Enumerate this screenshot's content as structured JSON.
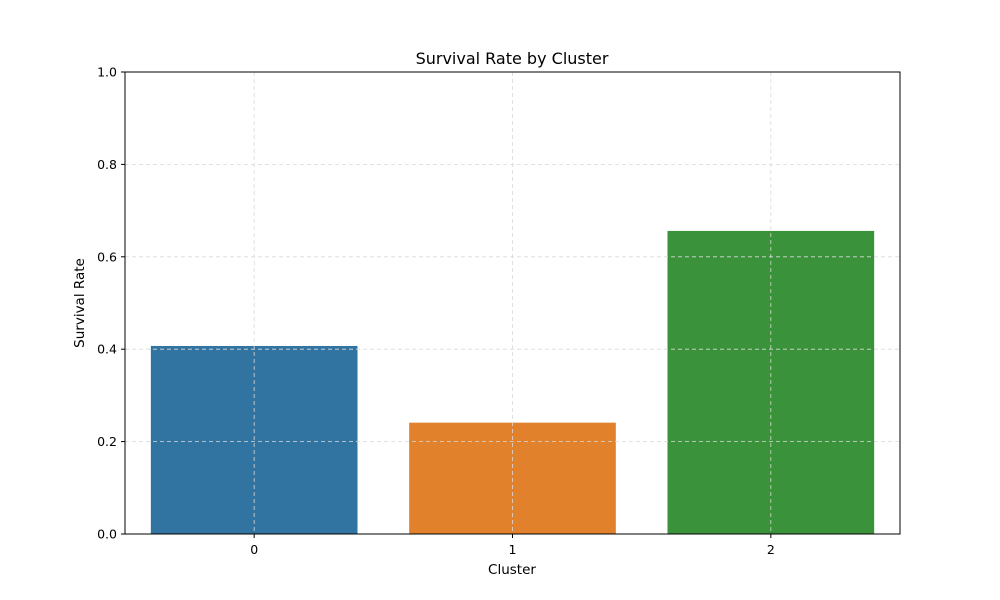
{
  "chart_data": {
    "type": "bar",
    "title": "Survival Rate by Cluster",
    "xlabel": "Cluster",
    "ylabel": "Survival Rate",
    "categories": [
      "0",
      "1",
      "2"
    ],
    "values": [
      0.407,
      0.241,
      0.656
    ],
    "colors": [
      "#3274a1",
      "#e1812c",
      "#3a923a"
    ],
    "ylim": [
      0,
      1.0
    ],
    "yticks": [
      "0.0",
      "0.2",
      "0.4",
      "0.6",
      "0.8",
      "1.0"
    ],
    "grid": true,
    "legend": "none"
  }
}
